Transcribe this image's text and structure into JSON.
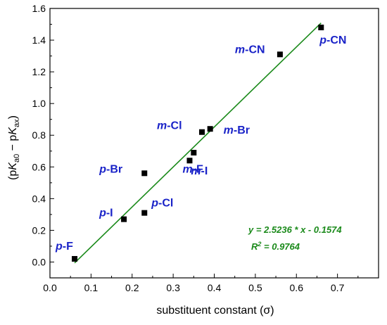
{
  "chart_data": {
    "type": "scatter",
    "xlabel": "substituent constant (σ)",
    "ylabel_parts": [
      "(p",
      "K",
      "a0",
      " − p",
      "K",
      "ax",
      ")"
    ],
    "xlim": [
      0.0,
      0.8
    ],
    "ylim": [
      -0.1,
      1.6
    ],
    "x_ticks": [
      "0.0",
      "0.1",
      "0.2",
      "0.3",
      "0.4",
      "0.5",
      "0.6",
      "0.7"
    ],
    "y_ticks": [
      "0.0",
      "0.2",
      "0.4",
      "0.6",
      "0.8",
      "1.0",
      "1.2",
      "1.4",
      "1.6"
    ],
    "points": [
      {
        "x": 0.06,
        "y": 0.02,
        "label_prefix": "p",
        "label_suffix": "-F"
      },
      {
        "x": 0.18,
        "y": 0.27,
        "label_prefix": "p",
        "label_suffix": "-I"
      },
      {
        "x": 0.23,
        "y": 0.31,
        "label_prefix": "p",
        "label_suffix": "-Cl"
      },
      {
        "x": 0.23,
        "y": 0.56,
        "label_prefix": "p",
        "label_suffix": "-Br"
      },
      {
        "x": 0.34,
        "y": 0.64,
        "label_prefix": "m",
        "label_suffix": "-F"
      },
      {
        "x": 0.35,
        "y": 0.69,
        "label_prefix": "m",
        "label_suffix": "-I"
      },
      {
        "x": 0.37,
        "y": 0.82,
        "label_prefix": "m",
        "label_suffix": "-Cl"
      },
      {
        "x": 0.39,
        "y": 0.84,
        "label_prefix": "m",
        "label_suffix": "-Br"
      },
      {
        "x": 0.56,
        "y": 1.31,
        "label_prefix": "m",
        "label_suffix": "-CN"
      },
      {
        "x": 0.66,
        "y": 1.48,
        "label_prefix": "p",
        "label_suffix": "-CN"
      }
    ],
    "fit": {
      "slope": 2.5236,
      "intercept": -0.1574,
      "x_range": [
        0.06,
        0.66
      ],
      "equation": "y = 2.5236 * x - 0.1574",
      "r2_base": "R",
      "r2_sup": "2",
      "r2_value": " = 0.9764"
    },
    "colors": {
      "labels": "#1a23c8",
      "fit": "#1a8a1a",
      "points": "#000000"
    }
  }
}
